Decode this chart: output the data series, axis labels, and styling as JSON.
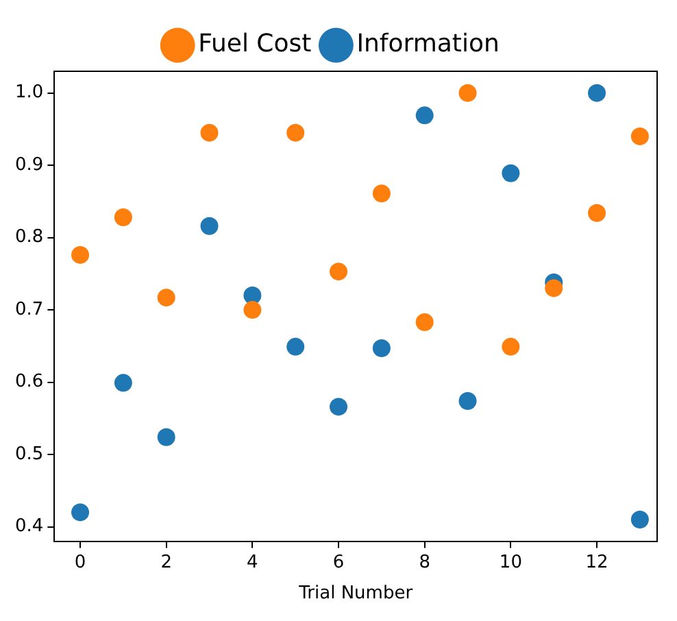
{
  "chart_data": {
    "type": "scatter",
    "xlabel": "Trial Number",
    "xlim": [
      -0.6,
      13.4
    ],
    "xticks": [
      0,
      2,
      4,
      6,
      8,
      10,
      12
    ],
    "ylim": [
      0.38,
      1.03
    ],
    "yticks": [
      0.4,
      0.5,
      0.6,
      0.7,
      0.8,
      0.9,
      {
        "value": 1.0,
        "label": "1.0"
      }
    ],
    "grid": false,
    "legend": "top",
    "marker": "circle",
    "x": [
      0,
      1,
      2,
      3,
      4,
      5,
      6,
      7,
      8,
      9,
      10,
      11,
      12,
      13
    ],
    "series": [
      {
        "name": "Fuel Cost",
        "color": "#ff7f0e",
        "values": [
          0.776,
          0.828,
          0.717,
          0.945,
          0.7,
          0.945,
          0.753,
          0.861,
          0.683,
          1.0,
          0.649,
          0.73,
          0.834,
          0.94
        ]
      },
      {
        "name": "Information",
        "color": "#1f77b4",
        "values": [
          0.42,
          0.599,
          0.524,
          0.816,
          0.72,
          0.649,
          0.566,
          0.647,
          0.969,
          0.574,
          0.889,
          0.738,
          1.0,
          0.41
        ]
      }
    ]
  }
}
